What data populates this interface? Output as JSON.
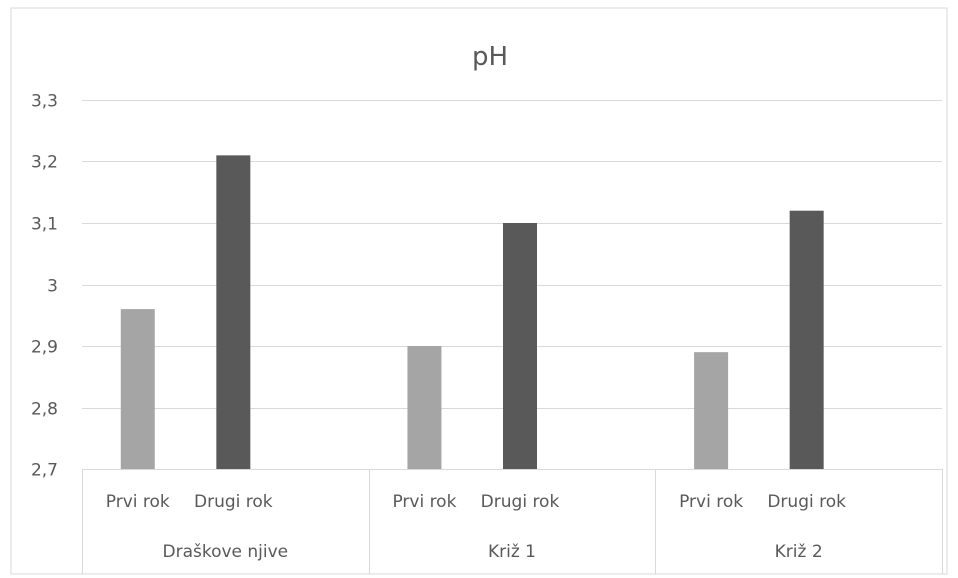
{
  "chart_data": {
    "type": "bar",
    "title": "pH",
    "xlabel": "",
    "ylabel": "",
    "ylim": [
      2.7,
      3.3
    ],
    "yticks": [
      "2,7",
      "2,8",
      "2,9",
      "3",
      "3,1",
      "3,2",
      "3,3"
    ],
    "ytick_values": [
      2.7,
      2.8,
      2.9,
      3.0,
      3.1,
      3.2,
      3.3
    ],
    "grid": true,
    "groups": [
      {
        "label": "Draškove njive",
        "bars": [
          {
            "label": "Prvi rok",
            "value": 2.96,
            "color": "#a5a5a5"
          },
          {
            "label": "Drugi rok",
            "value": 3.21,
            "color": "#595959"
          }
        ]
      },
      {
        "label": "Križ 1",
        "bars": [
          {
            "label": "Prvi rok",
            "value": 2.9,
            "color": "#a5a5a5"
          },
          {
            "label": "Drugi rok",
            "value": 3.1,
            "color": "#595959"
          }
        ]
      },
      {
        "label": "Križ 2",
        "bars": [
          {
            "label": "Prvi rok",
            "value": 2.89,
            "color": "#a5a5a5"
          },
          {
            "label": "Drugi rok",
            "value": 3.12,
            "color": "#595959"
          }
        ]
      }
    ]
  }
}
